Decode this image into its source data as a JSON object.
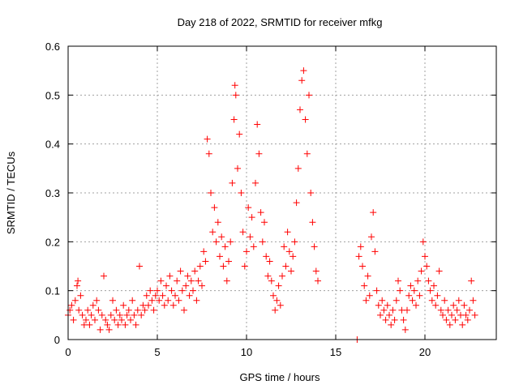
{
  "chart_data": {
    "type": "scatter",
    "title": "Day 218 of 2022, SRMTID for receiver mfkg",
    "xlabel": "GPS time / hours",
    "ylabel": "SRMTID / TECUs",
    "xlim": [
      0,
      24
    ],
    "ylim": [
      0,
      0.6
    ],
    "xticks": [
      0,
      5,
      10,
      15,
      20
    ],
    "yticks": [
      0,
      0.1,
      0.2,
      0.3,
      0.4,
      0.5,
      0.6
    ],
    "xtick_labels": [
      "0",
      "5",
      "10",
      "15",
      "20"
    ],
    "ytick_labels": [
      "0",
      "0.1",
      "0.2",
      "0.3",
      "0.4",
      "0.5",
      "0.6"
    ],
    "grid": true,
    "marker": "+",
    "series": [
      {
        "name": "mfkg",
        "color": "#ff0000",
        "points": [
          [
            0.0,
            0.05
          ],
          [
            0.1,
            0.06
          ],
          [
            0.2,
            0.07
          ],
          [
            0.3,
            0.04
          ],
          [
            0.4,
            0.08
          ],
          [
            0.5,
            0.11
          ],
          [
            0.55,
            0.12
          ],
          [
            0.6,
            0.06
          ],
          [
            0.7,
            0.09
          ],
          [
            0.8,
            0.05
          ],
          [
            0.9,
            0.03
          ],
          [
            1.0,
            0.04
          ],
          [
            1.1,
            0.06
          ],
          [
            1.2,
            0.03
          ],
          [
            1.3,
            0.05
          ],
          [
            1.4,
            0.07
          ],
          [
            1.5,
            0.04
          ],
          [
            1.6,
            0.08
          ],
          [
            1.7,
            0.06
          ],
          [
            1.8,
            0.02
          ],
          [
            1.9,
            0.05
          ],
          [
            2.0,
            0.13
          ],
          [
            2.1,
            0.04
          ],
          [
            2.2,
            0.03
          ],
          [
            2.3,
            0.02
          ],
          [
            2.4,
            0.05
          ],
          [
            2.5,
            0.08
          ],
          [
            2.6,
            0.04
          ],
          [
            2.7,
            0.06
          ],
          [
            2.8,
            0.03
          ],
          [
            2.9,
            0.05
          ],
          [
            3.0,
            0.04
          ],
          [
            3.1,
            0.07
          ],
          [
            3.2,
            0.03
          ],
          [
            3.3,
            0.05
          ],
          [
            3.4,
            0.06
          ],
          [
            3.5,
            0.04
          ],
          [
            3.6,
            0.08
          ],
          [
            3.7,
            0.05
          ],
          [
            3.8,
            0.03
          ],
          [
            3.9,
            0.06
          ],
          [
            4.0,
            0.15
          ],
          [
            4.1,
            0.05
          ],
          [
            4.2,
            0.07
          ],
          [
            4.3,
            0.06
          ],
          [
            4.4,
            0.09
          ],
          [
            4.5,
            0.07
          ],
          [
            4.6,
            0.1
          ],
          [
            4.7,
            0.08
          ],
          [
            4.8,
            0.06
          ],
          [
            4.9,
            0.09
          ],
          [
            5.0,
            0.1
          ],
          [
            5.1,
            0.08
          ],
          [
            5.2,
            0.12
          ],
          [
            5.3,
            0.09
          ],
          [
            5.4,
            0.07
          ],
          [
            5.5,
            0.11
          ],
          [
            5.6,
            0.08
          ],
          [
            5.7,
            0.13
          ],
          [
            5.8,
            0.1
          ],
          [
            5.9,
            0.07
          ],
          [
            6.0,
            0.09
          ],
          [
            6.1,
            0.12
          ],
          [
            6.2,
            0.08
          ],
          [
            6.3,
            0.14
          ],
          [
            6.4,
            0.1
          ],
          [
            6.5,
            0.06
          ],
          [
            6.6,
            0.11
          ],
          [
            6.7,
            0.13
          ],
          [
            6.8,
            0.09
          ],
          [
            6.9,
            0.12
          ],
          [
            7.0,
            0.1
          ],
          [
            7.1,
            0.14
          ],
          [
            7.2,
            0.08
          ],
          [
            7.3,
            0.12
          ],
          [
            7.4,
            0.15
          ],
          [
            7.5,
            0.11
          ],
          [
            7.6,
            0.18
          ],
          [
            7.7,
            0.16
          ],
          [
            7.8,
            0.41
          ],
          [
            7.9,
            0.38
          ],
          [
            8.0,
            0.3
          ],
          [
            8.1,
            0.22
          ],
          [
            8.2,
            0.27
          ],
          [
            8.3,
            0.2
          ],
          [
            8.4,
            0.24
          ],
          [
            8.5,
            0.17
          ],
          [
            8.6,
            0.21
          ],
          [
            8.7,
            0.15
          ],
          [
            8.8,
            0.19
          ],
          [
            8.9,
            0.12
          ],
          [
            9.0,
            0.16
          ],
          [
            9.1,
            0.2
          ],
          [
            9.2,
            0.32
          ],
          [
            9.3,
            0.45
          ],
          [
            9.35,
            0.52
          ],
          [
            9.4,
            0.5
          ],
          [
            9.5,
            0.35
          ],
          [
            9.6,
            0.42
          ],
          [
            9.7,
            0.3
          ],
          [
            9.8,
            0.22
          ],
          [
            9.9,
            0.15
          ],
          [
            10.0,
            0.18
          ],
          [
            10.1,
            0.27
          ],
          [
            10.2,
            0.21
          ],
          [
            10.3,
            0.25
          ],
          [
            10.4,
            0.19
          ],
          [
            10.5,
            0.32
          ],
          [
            10.6,
            0.44
          ],
          [
            10.7,
            0.38
          ],
          [
            10.8,
            0.26
          ],
          [
            10.9,
            0.2
          ],
          [
            11.0,
            0.24
          ],
          [
            11.1,
            0.17
          ],
          [
            11.2,
            0.13
          ],
          [
            11.3,
            0.16
          ],
          [
            11.4,
            0.12
          ],
          [
            11.5,
            0.09
          ],
          [
            11.6,
            0.06
          ],
          [
            11.7,
            0.08
          ],
          [
            11.8,
            0.11
          ],
          [
            11.9,
            0.07
          ],
          [
            12.0,
            0.13
          ],
          [
            12.1,
            0.19
          ],
          [
            12.2,
            0.15
          ],
          [
            12.3,
            0.22
          ],
          [
            12.4,
            0.18
          ],
          [
            12.5,
            0.14
          ],
          [
            12.6,
            0.17
          ],
          [
            12.7,
            0.2
          ],
          [
            12.8,
            0.28
          ],
          [
            12.9,
            0.35
          ],
          [
            13.0,
            0.47
          ],
          [
            13.1,
            0.53
          ],
          [
            13.2,
            0.55
          ],
          [
            13.3,
            0.45
          ],
          [
            13.4,
            0.38
          ],
          [
            13.5,
            0.5
          ],
          [
            13.6,
            0.3
          ],
          [
            13.7,
            0.24
          ],
          [
            13.8,
            0.19
          ],
          [
            13.9,
            0.14
          ],
          [
            14.0,
            0.12
          ],
          [
            16.2,
            0.0
          ],
          [
            16.3,
            0.17
          ],
          [
            16.4,
            0.19
          ],
          [
            16.5,
            0.15
          ],
          [
            16.6,
            0.11
          ],
          [
            16.7,
            0.08
          ],
          [
            16.8,
            0.13
          ],
          [
            16.9,
            0.09
          ],
          [
            17.0,
            0.21
          ],
          [
            17.1,
            0.26
          ],
          [
            17.2,
            0.18
          ],
          [
            17.3,
            0.1
          ],
          [
            17.4,
            0.07
          ],
          [
            17.5,
            0.05
          ],
          [
            17.6,
            0.08
          ],
          [
            17.7,
            0.06
          ],
          [
            17.8,
            0.04
          ],
          [
            17.9,
            0.07
          ],
          [
            18.0,
            0.05
          ],
          [
            18.1,
            0.03
          ],
          [
            18.2,
            0.06
          ],
          [
            18.3,
            0.04
          ],
          [
            18.4,
            0.08
          ],
          [
            18.5,
            0.12
          ],
          [
            18.6,
            0.1
          ],
          [
            18.7,
            0.06
          ],
          [
            18.8,
            0.04
          ],
          [
            18.9,
            0.02
          ],
          [
            19.0,
            0.06
          ],
          [
            19.1,
            0.09
          ],
          [
            19.2,
            0.11
          ],
          [
            19.3,
            0.08
          ],
          [
            19.4,
            0.1
          ],
          [
            19.5,
            0.07
          ],
          [
            19.6,
            0.12
          ],
          [
            19.7,
            0.09
          ],
          [
            19.8,
            0.14
          ],
          [
            19.9,
            0.2
          ],
          [
            20.0,
            0.17
          ],
          [
            20.1,
            0.15
          ],
          [
            20.2,
            0.12
          ],
          [
            20.3,
            0.1
          ],
          [
            20.4,
            0.08
          ],
          [
            20.5,
            0.11
          ],
          [
            20.6,
            0.07
          ],
          [
            20.7,
            0.09
          ],
          [
            20.8,
            0.14
          ],
          [
            20.9,
            0.06
          ],
          [
            21.0,
            0.05
          ],
          [
            21.1,
            0.08
          ],
          [
            21.2,
            0.04
          ],
          [
            21.3,
            0.06
          ],
          [
            21.4,
            0.03
          ],
          [
            21.5,
            0.05
          ],
          [
            21.6,
            0.07
          ],
          [
            21.7,
            0.04
          ],
          [
            21.8,
            0.06
          ],
          [
            21.9,
            0.08
          ],
          [
            22.0,
            0.05
          ],
          [
            22.1,
            0.03
          ],
          [
            22.2,
            0.07
          ],
          [
            22.3,
            0.05
          ],
          [
            22.4,
            0.04
          ],
          [
            22.5,
            0.06
          ],
          [
            22.6,
            0.12
          ],
          [
            22.7,
            0.08
          ],
          [
            22.8,
            0.05
          ]
        ]
      }
    ]
  }
}
